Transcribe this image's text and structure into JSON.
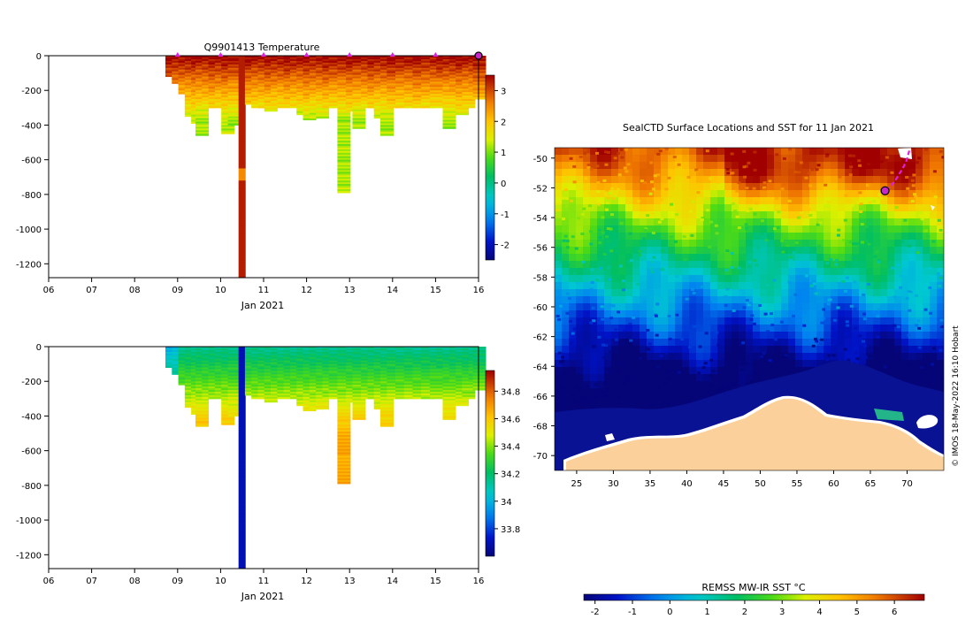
{
  "chart_data": [
    {
      "id": "temperature",
      "type": "heatmap",
      "title": "Q9901413  Temperature",
      "xlabel": "Jan 2021",
      "x_ticks": [
        "06",
        "07",
        "08",
        "09",
        "10",
        "11",
        "12",
        "13",
        "14",
        "15",
        "16"
      ],
      "x_range": [
        6,
        16
      ],
      "y_ticks": [
        0,
        -200,
        -400,
        -600,
        -800,
        -1000,
        -1200
      ],
      "ylim": [
        -1280,
        0
      ],
      "colorbar_ticks": [
        3,
        2,
        1,
        0,
        -1,
        -2
      ],
      "colorbar_range": [
        -2.5,
        3.5
      ],
      "surface_markers_day": [
        9,
        10,
        11,
        12,
        13,
        14,
        15
      ],
      "last_position_day": 16,
      "profiles": [
        {
          "day": 8.85,
          "depth": 120,
          "surface": 3.3
        },
        {
          "day": 9.0,
          "depth": 160,
          "surface": 3.2
        },
        {
          "day": 9.15,
          "depth": 220,
          "surface": 3.2
        },
        {
          "day": 9.3,
          "depth": 350,
          "surface": 3.2
        },
        {
          "day": 9.45,
          "depth": 390,
          "surface": 3.3
        },
        {
          "day": 9.55,
          "depth": 460,
          "surface": 3.2
        },
        {
          "day": 9.7,
          "depth": 300,
          "surface": 3.2
        },
        {
          "day": 9.85,
          "depth": 300,
          "surface": 3.3
        },
        {
          "day": 10.0,
          "depth": 280,
          "surface": 3.2
        },
        {
          "day": 10.15,
          "depth": 450,
          "surface": 3.3
        },
        {
          "day": 10.3,
          "depth": 400,
          "surface": 3.2
        },
        {
          "day": 10.5,
          "depth": 1280,
          "surface": 3.4
        },
        {
          "day": 10.7,
          "depth": 280,
          "surface": 3.3
        },
        {
          "day": 10.85,
          "depth": 300,
          "surface": 3.2
        },
        {
          "day": 11.0,
          "depth": 300,
          "surface": 3.2
        },
        {
          "day": 11.15,
          "depth": 320,
          "surface": 3.3
        },
        {
          "day": 11.3,
          "depth": 280,
          "surface": 3.2
        },
        {
          "day": 11.45,
          "depth": 300,
          "surface": 3.2
        },
        {
          "day": 11.6,
          "depth": 260,
          "surface": 3.3
        },
        {
          "day": 11.75,
          "depth": 300,
          "surface": 3.2
        },
        {
          "day": 11.9,
          "depth": 340,
          "surface": 3.2
        },
        {
          "day": 12.05,
          "depth": 370,
          "surface": 3.3
        },
        {
          "day": 12.2,
          "depth": 360,
          "surface": 3.2
        },
        {
          "day": 12.35,
          "depth": 360,
          "surface": 3.2
        },
        {
          "day": 12.5,
          "depth": 300,
          "surface": 3.3
        },
        {
          "day": 12.65,
          "depth": 300,
          "surface": 3.2
        },
        {
          "day": 12.85,
          "depth": 790,
          "surface": 3.2
        },
        {
          "day": 13.05,
          "depth": 320,
          "surface": 3.3
        },
        {
          "day": 13.2,
          "depth": 420,
          "surface": 3.2
        },
        {
          "day": 13.4,
          "depth": 300,
          "surface": 3.2
        },
        {
          "day": 13.55,
          "depth": 300,
          "surface": 3.3
        },
        {
          "day": 13.7,
          "depth": 360,
          "surface": 3.2
        },
        {
          "day": 13.85,
          "depth": 460,
          "surface": 3.2
        },
        {
          "day": 14.0,
          "depth": 300,
          "surface": 3.3
        },
        {
          "day": 14.2,
          "depth": 300,
          "surface": 3.2
        },
        {
          "day": 14.4,
          "depth": 300,
          "surface": 3.2
        },
        {
          "day": 14.6,
          "depth": 300,
          "surface": 3.3
        },
        {
          "day": 14.8,
          "depth": 300,
          "surface": 3.2
        },
        {
          "day": 15.0,
          "depth": 300,
          "surface": 3.2
        },
        {
          "day": 15.15,
          "depth": 120,
          "surface": 3.3
        },
        {
          "day": 15.3,
          "depth": 420,
          "surface": 3.2
        },
        {
          "day": 15.45,
          "depth": 200,
          "surface": 3.2
        },
        {
          "day": 15.6,
          "depth": 340,
          "surface": 3.3
        },
        {
          "day": 15.75,
          "depth": 300,
          "surface": 3.2
        },
        {
          "day": 15.9,
          "depth": 200,
          "surface": 3.2
        },
        {
          "day": 16.0,
          "depth": 250,
          "surface": 3.3
        }
      ]
    },
    {
      "id": "salinity",
      "type": "heatmap",
      "title": "",
      "xlabel": "Jan 2021",
      "x_ticks": [
        "06",
        "07",
        "08",
        "09",
        "10",
        "11",
        "12",
        "13",
        "14",
        "15",
        "16"
      ],
      "x_range": [
        6,
        16
      ],
      "y_ticks": [
        0,
        -200,
        -400,
        -600,
        -800,
        -1000,
        -1200
      ],
      "ylim": [
        -1280,
        0
      ],
      "colorbar_ticks": [
        34.8,
        34.6,
        34.4,
        34.2,
        34,
        33.8
      ],
      "colorbar_range": [
        33.6,
        34.95
      ],
      "profiles_ref": "same as temperature profiles"
    },
    {
      "id": "sst_map",
      "type": "heatmap",
      "title": "SealCTD Surface Locations and SST for 11 Jan 2021",
      "x_ticks": [
        25,
        30,
        35,
        40,
        45,
        50,
        55,
        60,
        65,
        70
      ],
      "xlim": [
        22,
        75
      ],
      "y_ticks": [
        -50,
        -52,
        -54,
        -56,
        -58,
        -60,
        -62,
        -64,
        -66,
        -68,
        -70
      ],
      "ylim": [
        -71,
        -49.3
      ],
      "colorbar_label": "REMSS MW-IR SST °C",
      "colorbar_ticks": [
        -2,
        -1,
        0,
        1,
        2,
        3,
        4,
        5,
        6
      ],
      "colorbar_range": [
        -2.3,
        6.8
      ],
      "credit": "© IMOS 18-May-2022 16:10 Hobart",
      "track": [
        {
          "lon": 70.3,
          "lat": -49.5
        },
        {
          "lon": 69.9,
          "lat": -50.2
        },
        {
          "lon": 69.4,
          "lat": -50.7
        },
        {
          "lon": 68.9,
          "lat": -51.1
        },
        {
          "lon": 68.4,
          "lat": -51.5
        },
        {
          "lon": 67.9,
          "lat": -51.8
        },
        {
          "lon": 67.5,
          "lat": -52.0
        },
        {
          "lon": 67.0,
          "lat": -52.2
        }
      ],
      "current_position": {
        "lon": 67.0,
        "lat": -52.2
      },
      "colors": {
        "land": "#fcd09a",
        "ice_coast": "#ffffff",
        "track": "#e020e0"
      }
    }
  ]
}
